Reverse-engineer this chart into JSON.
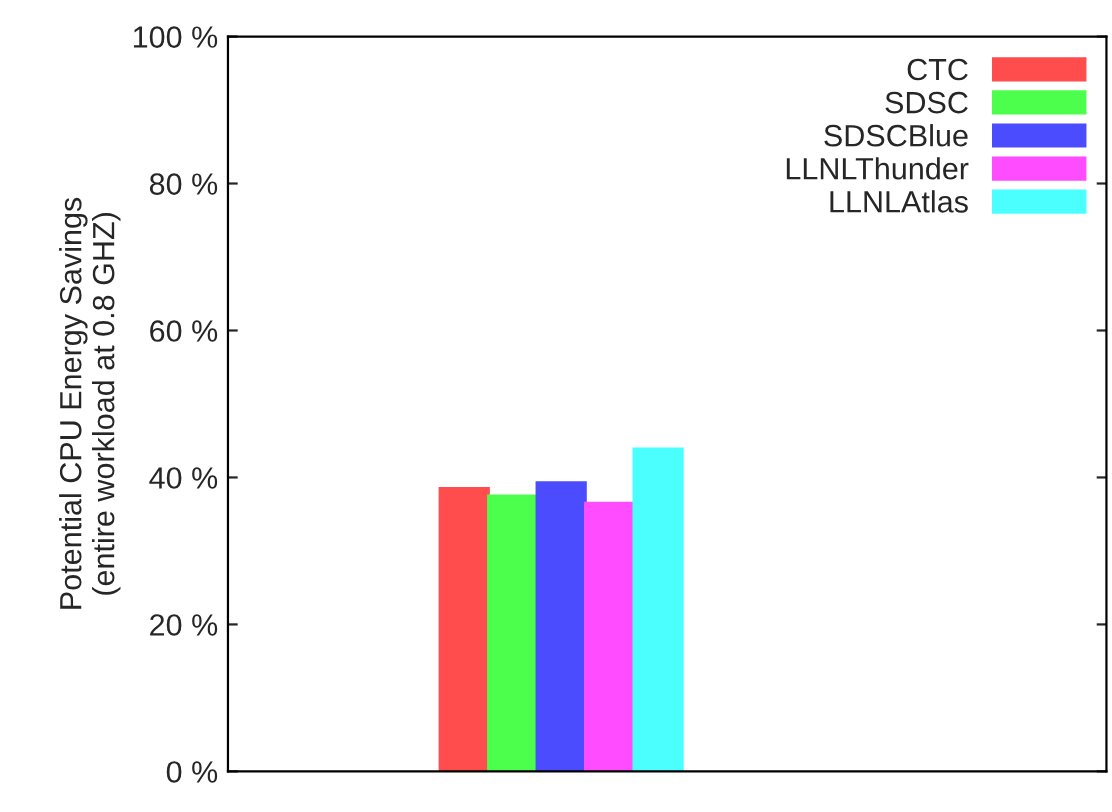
{
  "chart_data": {
    "type": "bar",
    "ylabel": "Potential CPU Energy Savings\n(entire workload at 0.8 GHZ)",
    "categories": [
      null
    ],
    "series": [
      {
        "name": "CTC",
        "color": "#ff4c4c",
        "values": [
          38.5
        ]
      },
      {
        "name": "SDSC",
        "color": "#4cff4c",
        "values": [
          37.5
        ]
      },
      {
        "name": "SDSCBlue",
        "color": "#4c4cff",
        "values": [
          39.3
        ]
      },
      {
        "name": "LLNLThunder",
        "color": "#ff4cff",
        "values": [
          36.5
        ]
      },
      {
        "name": "LLNLAtlas",
        "color": "#4cffff",
        "values": [
          43.9
        ]
      }
    ],
    "ylim": [
      0,
      100
    ],
    "yticks": [
      {
        "value": 0,
        "label": "0 %"
      },
      {
        "value": 20,
        "label": "20 %"
      },
      {
        "value": 40,
        "label": "40 %"
      },
      {
        "value": 60,
        "label": "60 %"
      },
      {
        "value": 80,
        "label": "80 %"
      },
      {
        "value": 100,
        "label": "100 %"
      }
    ],
    "grid": false,
    "legend": "top right"
  }
}
